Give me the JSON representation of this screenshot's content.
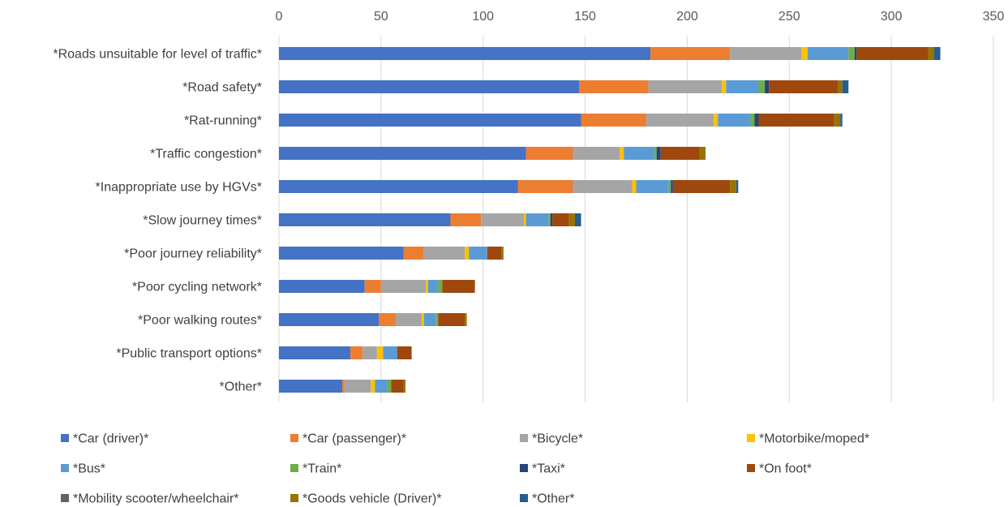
{
  "chart_data": {
    "type": "bar",
    "orientation": "horizontal",
    "stacked": true,
    "xlim": [
      0,
      350
    ],
    "x_ticks": [
      "0",
      "50",
      "100",
      "150",
      "200",
      "250",
      "300",
      "350"
    ],
    "grid": "vertical",
    "legend_position": "bottom",
    "categories": [
      "*Roads unsuitable for level of traffic*",
      "*Road safety*",
      "*Rat-running*",
      "*Traffic congestion*",
      "*Inappropriate use by HGVs*",
      "*Slow journey times*",
      "*Poor journey reliability*",
      "*Poor cycling network*",
      "*Poor walking routes*",
      "*Public transport options*",
      "*Other*"
    ],
    "series": [
      {
        "name": "*Car (driver)*",
        "color": "#4472C4",
        "values": [
          182,
          147,
          148,
          121,
          117,
          84,
          61,
          42,
          49,
          35,
          31
        ]
      },
      {
        "name": "*Car (passenger)*",
        "color": "#ED7D31",
        "values": [
          39,
          34,
          32,
          23,
          27,
          15,
          10,
          8,
          8,
          6,
          1
        ]
      },
      {
        "name": "*Bicycle*",
        "color": "#A5A5A5",
        "values": [
          35,
          36,
          33,
          23,
          29,
          21,
          20,
          22,
          13,
          7,
          13
        ]
      },
      {
        "name": "*Motorbike/moped*",
        "color": "#FFC000",
        "values": [
          3,
          2,
          2,
          2,
          2,
          1,
          2,
          1,
          1,
          3,
          2
        ]
      },
      {
        "name": "*Bus*",
        "color": "#5B9BD5",
        "values": [
          20,
          16,
          16,
          15,
          16,
          11,
          9,
          5,
          6,
          7,
          6
        ]
      },
      {
        "name": "*Train*",
        "color": "#70AD47",
        "values": [
          3,
          3,
          2,
          1,
          1,
          1,
          0,
          2,
          1,
          0,
          2
        ]
      },
      {
        "name": "*Taxi*",
        "color": "#264478",
        "values": [
          1,
          2,
          2,
          2,
          1,
          1,
          0,
          0,
          0,
          0,
          0
        ]
      },
      {
        "name": "*On foot*",
        "color": "#9E480E",
        "values": [
          35,
          34,
          37,
          19,
          28,
          8,
          7,
          16,
          13,
          7,
          6
        ]
      },
      {
        "name": "*Mobility scooter/wheelchair*",
        "color": "#636363",
        "values": [
          0,
          0,
          0,
          0,
          0,
          0,
          0,
          0,
          0,
          0,
          0
        ]
      },
      {
        "name": "*Goods vehicle (Driver)*",
        "color": "#997300",
        "values": [
          3,
          2,
          3,
          3,
          3,
          3,
          1,
          0,
          1,
          0,
          1
        ]
      },
      {
        "name": "*Other*",
        "color": "#255E91",
        "values": [
          3,
          3,
          1,
          0,
          1,
          3,
          0,
          0,
          0,
          0,
          0
        ]
      }
    ]
  }
}
